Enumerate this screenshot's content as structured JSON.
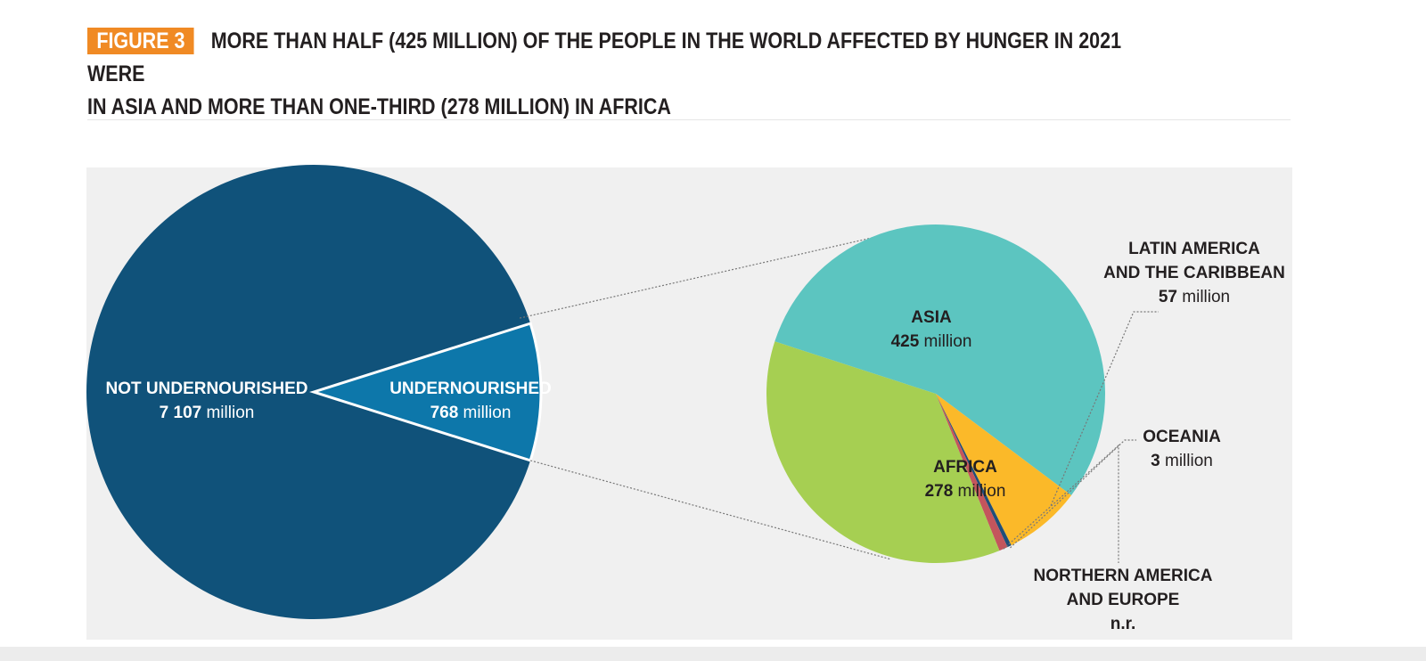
{
  "header": {
    "figure_tag": "FIGURE 3",
    "title_line1": "MORE THAN HALF (425 MILLION) OF THE PEOPLE IN THE WORLD AFFECTED BY HUNGER IN 2021 WERE",
    "title_line2": "IN ASIA AND MORE THAN ONE-THIRD (278 MILLION) IN AFRICA"
  },
  "chart_data": [
    {
      "type": "pie",
      "slices": [
        {
          "name": "NOT UNDERNOURISHED",
          "value": 7107,
          "value_label": "7 107",
          "unit": "million",
          "color": "#10527a"
        },
        {
          "name": "UNDERNOURISHED",
          "value": 768,
          "value_label": "768",
          "unit": "million",
          "color": "#0d77aa"
        }
      ]
    },
    {
      "type": "pie",
      "slices": [
        {
          "name": "ASIA",
          "value": 425,
          "value_label": "425",
          "unit": "million",
          "color": "#5cc5c0"
        },
        {
          "name": "LATIN AMERICA AND THE CARIBBEAN",
          "name_lines": [
            "LATIN AMERICA",
            "AND THE CARIBBEAN"
          ],
          "value": 57,
          "value_label": "57",
          "unit": "million",
          "color": "#fbb929"
        },
        {
          "name": "OCEANIA",
          "value": 3,
          "value_label": "3",
          "unit": "million",
          "color": "#1f4e79"
        },
        {
          "name": "NORTHERN AMERICA AND EUROPE",
          "name_lines": [
            "NORTHERN AMERICA",
            "AND EUROPE"
          ],
          "value": null,
          "value_label": "n.r.",
          "unit": "",
          "color": "#c4555c"
        },
        {
          "name": "AFRICA",
          "value": 278,
          "value_label": "278",
          "unit": "million",
          "color": "#a6cf52"
        }
      ]
    }
  ]
}
